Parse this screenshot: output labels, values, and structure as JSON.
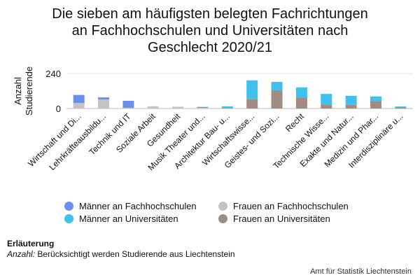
{
  "title_lines": [
    "Die sieben am häufigsten belegten Fachrichtungen",
    "an Fachhochschulen und Universitäten nach",
    "Geschlecht 2020/21"
  ],
  "note": {
    "heading": "Erläuterung",
    "key": "Anzahl:",
    "text": "Berücksichtigt werden Studierende aus Liechtenstein"
  },
  "source": "Amt für Statistik Liechtenstein",
  "chart_data": {
    "type": "bar",
    "stacked": true,
    "ylabel": "Anzahl Studierende",
    "ylabel_lines": [
      "Anzahl",
      "Studierende"
    ],
    "ylim": [
      0,
      240
    ],
    "yticks": [
      0,
      240
    ],
    "grid": true,
    "legend_position": "bottom",
    "categories": [
      "Wirtschaft und Di...",
      "Lehrkräfteausbildu...",
      "Technik und IT",
      "Soziale Arbeit",
      "Gesundheit",
      "Musik Theater und...",
      "Architektur Bau- u...",
      "Wirtschaftswisse...",
      "Geistes- und Sozi...",
      "Recht",
      "Technische Wisse...",
      "Exakte und Natur...",
      "Medizin und Phar...",
      "Interdisziplinäre u..."
    ],
    "series": [
      {
        "name": "Frauen an Fachhochschulen",
        "color": "#c4c4c4",
        "values": [
          38,
          62,
          5,
          15,
          12,
          4,
          0,
          0,
          0,
          0,
          0,
          0,
          0,
          0
        ]
      },
      {
        "name": "Männer an Fachhochschulen",
        "color": "#6b8ff0",
        "values": [
          55,
          14,
          48,
          0,
          0,
          7,
          0,
          0,
          0,
          0,
          0,
          0,
          0,
          0
        ]
      },
      {
        "name": "Frauen an Universitäten",
        "color": "#a08c80",
        "values": [
          0,
          0,
          0,
          0,
          0,
          0,
          3,
          63,
          125,
          72,
          28,
          25,
          50,
          7
        ]
      },
      {
        "name": "Männer an Universitäten",
        "color": "#3fc0ed",
        "values": [
          0,
          0,
          0,
          0,
          0,
          0,
          12,
          130,
          57,
          73,
          72,
          62,
          33,
          7
        ]
      }
    ],
    "legend_order": [
      "Männer an Fachhochschulen",
      "Frauen an Fachhochschulen",
      "Männer an Universitäten",
      "Frauen an Universitäten"
    ]
  }
}
